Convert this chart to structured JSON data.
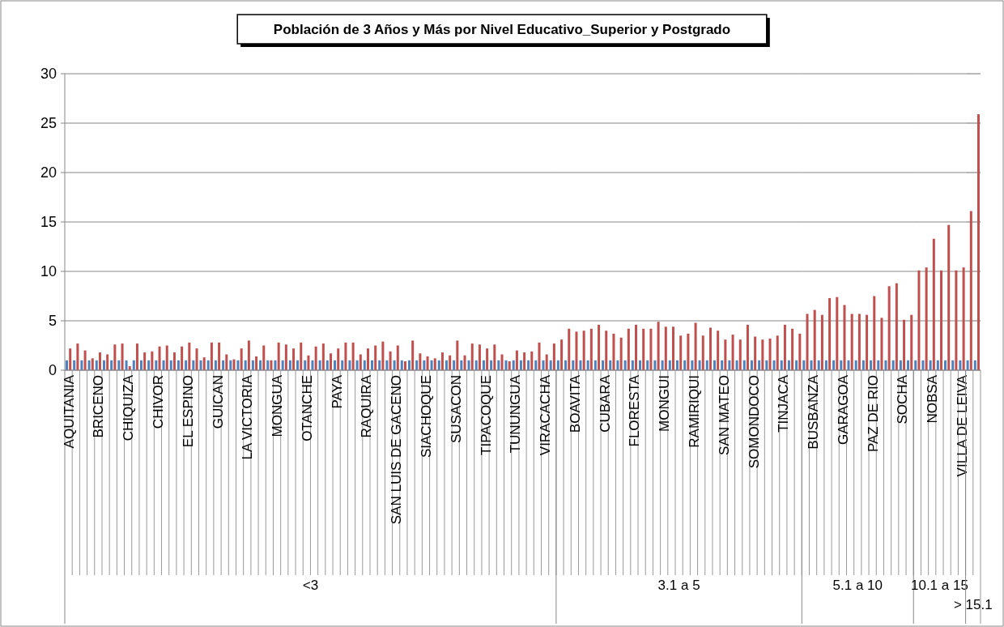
{
  "chart_data": [
    {
      "type": "bar",
      "title": "Población de 3 Años y Más por Nivel Educativo_Superior y Postgrado",
      "xlabel": "<3",
      "categories": [
        "AQUITANIA",
        null,
        null,
        null,
        "BRICENO",
        null,
        null,
        null,
        "CHIQUIZA",
        null,
        null,
        null,
        "CHIVOR",
        null,
        null,
        null,
        "EL ESPINO",
        null,
        null,
        null,
        "GUICAN",
        null,
        null,
        null,
        "LA VICTORIA",
        null,
        null,
        null,
        "MONGUA",
        null,
        null,
        null,
        "OTANCHE",
        null,
        null,
        null,
        "PAYA",
        null,
        null,
        null,
        "RAQUIRA",
        null,
        null,
        null,
        "SAN LUIS DE GACENO",
        null,
        null,
        null,
        "SIACHOQUE",
        null,
        null,
        null,
        "SUSACON",
        null,
        null,
        null,
        "TIPACOQUE",
        null,
        null,
        null,
        "TUNUNGUA",
        null,
        null,
        null,
        "VIRACACHA",
        null
      ],
      "series": [
        {
          "color": "#4f81bd",
          "values": [
            1,
            1,
            1,
            1,
            1,
            1,
            1,
            1,
            1,
            1,
            1,
            1,
            1,
            1,
            1,
            1,
            1,
            1,
            1,
            1,
            1,
            1,
            1,
            1,
            1,
            1,
            1,
            1,
            1,
            1,
            1,
            1,
            1,
            1,
            1,
            1,
            1,
            1,
            1,
            1,
            1,
            1,
            1,
            1,
            1,
            1,
            1,
            1,
            1,
            1,
            1,
            1,
            1,
            1,
            1,
            1,
            1,
            1,
            1,
            1,
            1,
            1,
            1,
            1,
            1,
            1
          ]
        },
        {
          "color": "#c0504d",
          "values": [
            2.2,
            2.7,
            2.0,
            1.2,
            1.8,
            1.6,
            2.6,
            2.7,
            0.4,
            2.7,
            1.8,
            1.9,
            2.4,
            2.5,
            1.8,
            2.4,
            2.8,
            2.2,
            1.3,
            2.8,
            2.8,
            1.6,
            1.1,
            2.2,
            3.0,
            1.4,
            2.5,
            1.0,
            2.8,
            2.6,
            2.2,
            2.8,
            1.5,
            2.4,
            2.7,
            1.7,
            2.2,
            2.8,
            2.8,
            1.6,
            2.2,
            2.5,
            2.9,
            1.9,
            2.5,
            0.9,
            3.0,
            1.7,
            1.4,
            1.2,
            1.8,
            1.5,
            3.0,
            1.5,
            2.7,
            2.6,
            2.2,
            2.6,
            1.6,
            0.9,
            2.0,
            1.8,
            1.9,
            2.8,
            1.6,
            2.7
          ]
        }
      ],
      "ylim": [
        0,
        30
      ],
      "yticks": [
        0,
        5,
        10,
        15,
        20,
        25,
        30
      ],
      "grid": "y"
    },
    {
      "type": "bar",
      "xlabel": "3.1 a 5",
      "categories": [
        null,
        null,
        "BOAVITA",
        null,
        null,
        null,
        "CUBARA",
        null,
        null,
        null,
        "FLORESTA",
        null,
        null,
        null,
        "MONGUI",
        null,
        null,
        null,
        "RAMIRIQUI",
        null,
        null,
        null,
        "SAN MATEO",
        null,
        null,
        null,
        "SOMONDOCO",
        null,
        null,
        null,
        "TINJACA",
        null,
        null
      ],
      "series": [
        {
          "color": "#4f81bd",
          "values": [
            1,
            1,
            1,
            1,
            1,
            1,
            1,
            1,
            1,
            1,
            1,
            1,
            1,
            1,
            1,
            1,
            1,
            1,
            1,
            1,
            1,
            1,
            1,
            1,
            1,
            1,
            1,
            1,
            1,
            1,
            1,
            1,
            1
          ]
        },
        {
          "color": "#c0504d",
          "values": [
            3.1,
            4.2,
            3.9,
            4.0,
            4.2,
            4.6,
            4.0,
            3.7,
            3.3,
            4.2,
            4.6,
            4.2,
            4.2,
            4.9,
            4.4,
            4.4,
            3.5,
            3.7,
            4.8,
            3.5,
            4.3,
            4.0,
            3.1,
            3.6,
            3.1,
            4.6,
            3.4,
            3.1,
            3.2,
            3.5,
            4.6,
            4.2,
            3.7
          ]
        }
      ],
      "ylim": [
        0,
        30
      ],
      "yticks": [
        0,
        5,
        10,
        15,
        20,
        25,
        30
      ],
      "grid": "y",
      "tick_labels": "x"
    },
    {
      "type": "bar",
      "xlabel": "5.1 a 10",
      "categories": [
        null,
        "BUSBANZA",
        null,
        null,
        null,
        "GARAGOA",
        null,
        null,
        null,
        "PAZ DE RIO",
        null,
        null,
        null,
        "SOCHA",
        null
      ],
      "series": [
        {
          "color": "#4f81bd",
          "values": [
            1,
            1,
            1,
            1,
            1,
            1,
            1,
            1,
            1,
            1,
            1,
            1,
            1,
            1,
            1
          ]
        },
        {
          "color": "#c0504d",
          "values": [
            5.7,
            6.1,
            5.6,
            7.3,
            7.4,
            6.6,
            5.7,
            5.7,
            5.6,
            7.5,
            5.3,
            8.5,
            8.8,
            5.1,
            5.6
          ]
        }
      ],
      "ylim": [
        0,
        30
      ],
      "yticks": [
        0,
        5,
        10,
        15,
        20,
        25,
        30
      ],
      "grid": "y",
      "tick_labels": "x"
    },
    {
      "type": "bar",
      "xlabel": "10.1 a 15",
      "categories": [
        null,
        null,
        "NOBSA",
        null,
        null,
        null,
        "VILLA DE LEIVA"
      ],
      "series": [
        {
          "color": "#4f81bd",
          "values": [
            1,
            1,
            1,
            1,
            1,
            1,
            1
          ]
        },
        {
          "color": "#c0504d",
          "values": [
            10.1,
            10.4,
            13.3,
            10.1,
            14.7,
            10.1,
            10.4
          ]
        }
      ],
      "ylim": [
        0,
        30
      ],
      "yticks": [
        0,
        5,
        10,
        15,
        20,
        25,
        30
      ],
      "grid": "y",
      "tick_labels": "x"
    },
    {
      "type": "bar",
      "xlabel": "> 15.1",
      "categories": [
        null,
        null
      ],
      "series": [
        {
          "color": "#4f81bd",
          "values": [
            1,
            1
          ]
        },
        {
          "color": "#c0504d",
          "values": [
            16.1,
            25.9
          ]
        }
      ],
      "ylim": [
        0,
        30
      ],
      "yticks": [
        0,
        5,
        10,
        15,
        20,
        25,
        30
      ],
      "grid": "y",
      "tick_labels": "x"
    }
  ]
}
